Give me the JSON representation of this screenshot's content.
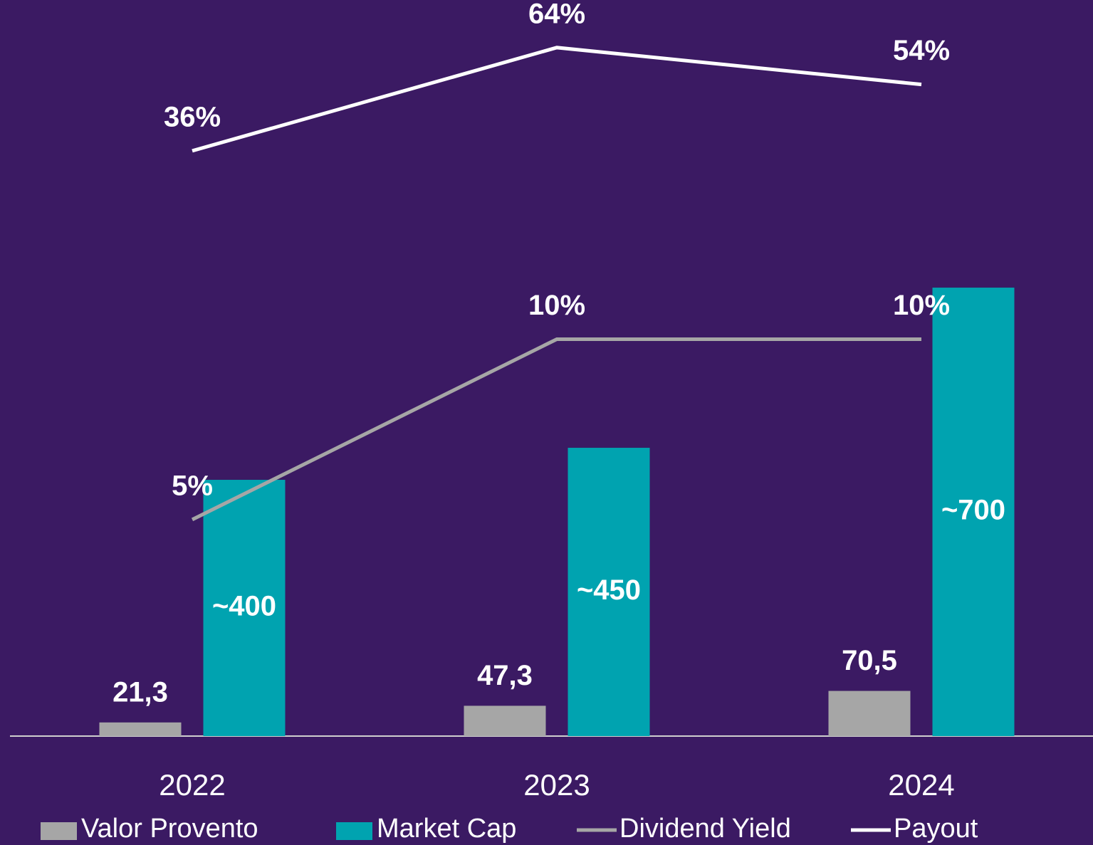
{
  "chart_data": {
    "type": "bar",
    "categories": [
      "2022",
      "2023",
      "2024"
    ],
    "ylim": [
      0,
      1149
    ],
    "series": [
      {
        "name": "Valor Provento",
        "type": "bar",
        "color": "#a6a6a6",
        "values": [
          21.3,
          47.3,
          70.5
        ],
        "value_labels": [
          "21,3",
          "47,3",
          "70,5"
        ]
      },
      {
        "name": "Market Cap",
        "type": "bar",
        "color": "#00a3b0",
        "values": [
          400,
          450,
          700
        ],
        "value_labels": [
          "~400",
          "~450",
          "~700"
        ]
      },
      {
        "name": "Dividend Yield",
        "type": "line",
        "color": "#a6a6a6",
        "ylim": [
          -1,
          19.4
        ],
        "values": [
          5,
          10,
          10
        ],
        "value_labels": [
          "5%",
          "10%",
          "10%"
        ]
      },
      {
        "name": "Payout",
        "type": "line",
        "color": "#ffffff",
        "ylim": [
          -122.7,
          76.9
        ],
        "values": [
          36,
          64,
          54
        ],
        "value_labels": [
          "36%",
          "64%",
          "54%"
        ]
      }
    ]
  }
}
